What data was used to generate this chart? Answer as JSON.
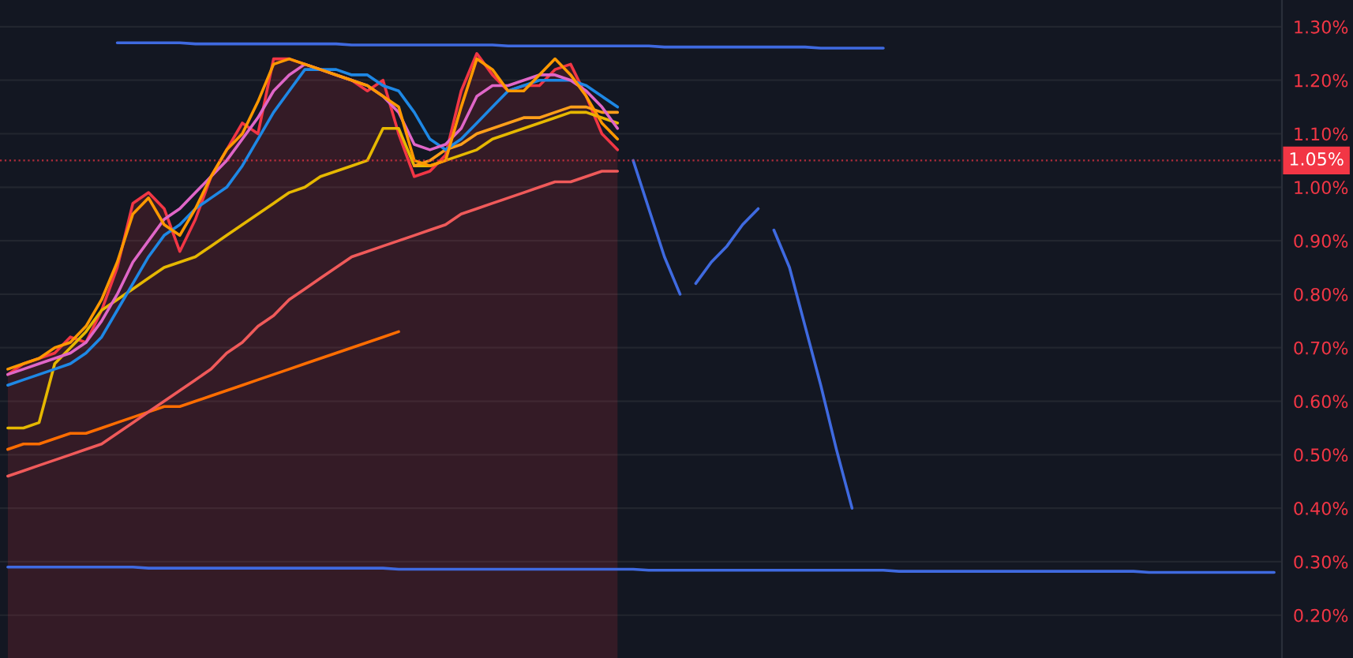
{
  "chart_data": {
    "type": "line",
    "categories": [
      null,
      null,
      null,
      null,
      null,
      null,
      null,
      null,
      null,
      null,
      null,
      null,
      null,
      null,
      null,
      null,
      null,
      null,
      null,
      null,
      null,
      null,
      null,
      null,
      null,
      null,
      null,
      null,
      null,
      null,
      null,
      null,
      null,
      null,
      null,
      null,
      null,
      null,
      null,
      null,
      null,
      null,
      null,
      null,
      null,
      null,
      null,
      null,
      null,
      null,
      null,
      null,
      null,
      null,
      null,
      null,
      null,
      null,
      null,
      null,
      null,
      null,
      null,
      null,
      null,
      null,
      null,
      null,
      null,
      null,
      null,
      null,
      null,
      null,
      null,
      null,
      null,
      null,
      null,
      null,
      null,
      null
    ],
    "ylim": [
      0.12,
      1.35
    ],
    "yticks": [
      {
        "value": 0.2,
        "label": "0.20%"
      },
      {
        "value": 0.3,
        "label": "0.30%"
      },
      {
        "value": 0.4,
        "label": "0.40%"
      },
      {
        "value": 0.5,
        "label": "0.50%"
      },
      {
        "value": 0.6,
        "label": "0.60%"
      },
      {
        "value": 0.7,
        "label": "0.70%"
      },
      {
        "value": 0.8,
        "label": "0.80%"
      },
      {
        "value": 0.9,
        "label": "0.90%"
      },
      {
        "value": 1.0,
        "label": "1.00%"
      },
      {
        "value": 1.1,
        "label": "1.10%"
      },
      {
        "value": 1.2,
        "label": "1.20%"
      },
      {
        "value": 1.3,
        "label": "1.30%"
      }
    ],
    "tick_labels": "y",
    "grid": "y",
    "ref_lines": [
      {
        "axis": "y",
        "value": 1.05,
        "label": "1.05%",
        "color": "#f23645",
        "line_style": "dotted"
      }
    ],
    "series": [
      {
        "type": "area",
        "color": "#f23645",
        "values": [
          0.65,
          0.67,
          0.68,
          0.69,
          0.72,
          0.71,
          0.77,
          0.85,
          0.97,
          0.99,
          0.96,
          0.88,
          0.94,
          1.02,
          1.07,
          1.12,
          1.1,
          1.24,
          1.24,
          1.23,
          1.22,
          1.21,
          1.2,
          1.18,
          1.2,
          1.1,
          1.02,
          1.03,
          1.06,
          1.18,
          1.25,
          1.21,
          1.18,
          1.19,
          1.19,
          1.22,
          1.23,
          1.17,
          1.1,
          1.07,
          null,
          null,
          null,
          null,
          null,
          null,
          null,
          null,
          null,
          null,
          null,
          null,
          null,
          null,
          null,
          null,
          null,
          null,
          null,
          null,
          null,
          null,
          null,
          null,
          null,
          null,
          null,
          null,
          null,
          null,
          null,
          null,
          null,
          null,
          null,
          null,
          null,
          null,
          null,
          null,
          null,
          null
        ]
      },
      {
        "color": "#ff6d00",
        "values": [
          0.51,
          0.52,
          0.52,
          0.53,
          0.54,
          0.54,
          0.55,
          0.56,
          0.57,
          0.58,
          0.59,
          0.59,
          0.6,
          0.61,
          0.62,
          0.63,
          0.64,
          0.65,
          0.66,
          0.67,
          0.68,
          0.69,
          0.7,
          0.71,
          0.72,
          0.73,
          null,
          null,
          null,
          null,
          null,
          null,
          null,
          null,
          null,
          null,
          null,
          null,
          null,
          null,
          null,
          null,
          null,
          null,
          null,
          null,
          null,
          null,
          null,
          null,
          null,
          null,
          null,
          null,
          null,
          null,
          null,
          null,
          null,
          null,
          null,
          null,
          null,
          null,
          null,
          null,
          null,
          null,
          null,
          null,
          null,
          null,
          null,
          null,
          null,
          null,
          null,
          null,
          null,
          null,
          null,
          null
        ]
      },
      {
        "color": "#f05a5a",
        "values": [
          0.46,
          0.47,
          0.48,
          0.49,
          0.5,
          0.51,
          0.52,
          0.54,
          0.56,
          0.58,
          0.6,
          0.62,
          0.64,
          0.66,
          0.69,
          0.71,
          0.74,
          0.76,
          0.79,
          0.81,
          0.83,
          0.85,
          0.87,
          0.88,
          0.89,
          0.9,
          0.91,
          0.92,
          0.93,
          0.95,
          0.96,
          0.97,
          0.98,
          0.99,
          1.0,
          1.01,
          1.01,
          1.02,
          1.03,
          1.03,
          null,
          null,
          null,
          null,
          null,
          null,
          null,
          null,
          null,
          null,
          null,
          null,
          null,
          null,
          null,
          null,
          null,
          null,
          null,
          null,
          null,
          null,
          null,
          null,
          null,
          null,
          null,
          null,
          null,
          null,
          null,
          null,
          null,
          null,
          null,
          null,
          null,
          null,
          null,
          null,
          null,
          null
        ]
      },
      {
        "color": "#e6b800",
        "values": [
          0.55,
          0.55,
          0.56,
          0.67,
          0.7,
          0.73,
          0.77,
          0.79,
          0.81,
          0.83,
          0.85,
          0.86,
          0.87,
          0.89,
          0.91,
          0.93,
          0.95,
          0.97,
          0.99,
          1.0,
          1.02,
          1.03,
          1.04,
          1.05,
          1.11,
          1.11,
          1.04,
          1.04,
          1.05,
          1.06,
          1.07,
          1.09,
          1.1,
          1.11,
          1.12,
          1.13,
          1.14,
          1.14,
          1.13,
          1.12,
          null,
          null,
          null,
          null,
          null,
          null,
          null,
          null,
          null,
          null,
          null,
          null,
          null,
          null,
          null,
          null,
          null,
          null,
          null,
          null,
          null,
          null,
          null,
          null,
          null,
          null,
          null,
          null,
          null,
          null,
          null,
          null,
          null,
          null,
          null,
          null,
          null,
          null,
          null,
          null,
          null,
          null
        ]
      },
      {
        "color": "#ff9f1a",
        "values": [
          null,
          null,
          null,
          null,
          null,
          null,
          null,
          null,
          null,
          null,
          null,
          null,
          null,
          null,
          null,
          null,
          null,
          null,
          null,
          null,
          null,
          null,
          null,
          null,
          null,
          null,
          1.04,
          1.05,
          1.07,
          1.08,
          1.1,
          1.11,
          1.12,
          1.13,
          1.13,
          1.14,
          1.15,
          1.15,
          1.14,
          1.14,
          null,
          null,
          null,
          null,
          null,
          null,
          null,
          null,
          null,
          null,
          null,
          null,
          null,
          null,
          null,
          null,
          null,
          null,
          null,
          null,
          null,
          null,
          null,
          null,
          null,
          null,
          null,
          null,
          null,
          null,
          null,
          null,
          null,
          null,
          null,
          null,
          null,
          null,
          null,
          null,
          null,
          null
        ]
      },
      {
        "color": "#1e88e5",
        "values": [
          0.63,
          0.64,
          0.65,
          0.66,
          0.67,
          0.69,
          0.72,
          0.77,
          0.82,
          0.87,
          0.91,
          0.93,
          0.96,
          0.98,
          1.0,
          1.04,
          1.09,
          1.14,
          1.18,
          1.22,
          1.22,
          1.22,
          1.21,
          1.21,
          1.19,
          1.18,
          1.14,
          1.09,
          1.07,
          1.09,
          1.12,
          1.15,
          1.18,
          1.19,
          1.2,
          1.2,
          1.2,
          1.19,
          1.17,
          1.15,
          null,
          null,
          null,
          null,
          null,
          null,
          null,
          null,
          null,
          null,
          null,
          null,
          null,
          null,
          null,
          null,
          null,
          null,
          null,
          null,
          null,
          null,
          null,
          null,
          null,
          null,
          null,
          null,
          null,
          null,
          null,
          null,
          null,
          null,
          null,
          null,
          null,
          null,
          null,
          null,
          null,
          null
        ]
      },
      {
        "color": "#e066c8",
        "values": [
          0.65,
          0.66,
          0.67,
          0.68,
          0.69,
          0.71,
          0.75,
          0.8,
          0.86,
          0.9,
          0.94,
          0.96,
          0.99,
          1.02,
          1.05,
          1.09,
          1.13,
          1.18,
          1.21,
          1.23,
          1.22,
          1.21,
          1.2,
          1.19,
          1.17,
          1.14,
          1.08,
          1.07,
          1.08,
          1.11,
          1.17,
          1.19,
          1.19,
          1.2,
          1.21,
          1.21,
          1.2,
          1.18,
          1.15,
          1.11,
          null,
          null,
          null,
          null,
          null,
          null,
          null,
          null,
          null,
          null,
          null,
          null,
          null,
          null,
          null,
          null,
          null,
          null,
          null,
          null,
          null,
          null,
          null,
          null,
          null,
          null,
          null,
          null,
          null,
          null,
          null,
          null,
          null,
          null,
          null,
          null,
          null,
          null,
          null,
          null,
          null,
          null
        ]
      },
      {
        "color": "#ff9800",
        "values": [
          0.66,
          0.67,
          0.68,
          0.7,
          0.71,
          0.74,
          0.79,
          0.86,
          0.95,
          0.98,
          0.93,
          0.91,
          0.96,
          1.02,
          1.07,
          1.1,
          1.16,
          1.23,
          1.24,
          1.23,
          1.22,
          1.21,
          1.2,
          1.19,
          1.17,
          1.15,
          1.05,
          1.04,
          1.05,
          1.15,
          1.24,
          1.22,
          1.18,
          1.18,
          1.21,
          1.24,
          1.21,
          1.17,
          1.12,
          1.09,
          null,
          null,
          null,
          null,
          null,
          null,
          null,
          null,
          null,
          null,
          null,
          null,
          null,
          null,
          null,
          null,
          null,
          null,
          null,
          null,
          null,
          null,
          null,
          null,
          null,
          null,
          null,
          null,
          null,
          null,
          null,
          null,
          null,
          null,
          null,
          null,
          null,
          null,
          null,
          null,
          null,
          null
        ]
      },
      {
        "color": "#3f6ae0",
        "values": [
          null,
          null,
          null,
          null,
          null,
          null,
          null,
          1.27,
          1.27,
          1.27,
          1.27,
          1.27,
          1.268,
          1.268,
          1.268,
          1.268,
          1.268,
          1.268,
          1.268,
          1.268,
          1.268,
          1.268,
          1.266,
          1.266,
          1.266,
          1.266,
          1.266,
          1.266,
          1.266,
          1.266,
          1.266,
          1.266,
          1.264,
          1.264,
          1.264,
          1.264,
          1.264,
          1.264,
          1.264,
          1.264,
          1.264,
          1.264,
          1.262,
          1.262,
          1.262,
          1.262,
          1.262,
          1.262,
          1.262,
          1.262,
          1.262,
          1.262,
          1.26,
          1.26,
          1.26,
          1.26,
          1.26,
          null,
          null,
          null,
          null,
          null,
          null,
          null,
          null,
          null,
          null,
          null,
          null,
          null,
          null,
          null,
          null,
          null,
          null,
          null,
          null,
          null,
          null,
          null,
          null,
          null
        ]
      },
      {
        "color": "#3f6ae0",
        "values": [
          0.29,
          0.29,
          0.29,
          0.29,
          0.29,
          0.29,
          0.29,
          0.29,
          0.29,
          0.288,
          0.288,
          0.288,
          0.288,
          0.288,
          0.288,
          0.288,
          0.288,
          0.288,
          0.288,
          0.288,
          0.288,
          0.288,
          0.288,
          0.288,
          0.288,
          0.286,
          0.286,
          0.286,
          0.286,
          0.286,
          0.286,
          0.286,
          0.286,
          0.286,
          0.286,
          0.286,
          0.286,
          0.286,
          0.286,
          0.286,
          0.286,
          0.284,
          0.284,
          0.284,
          0.284,
          0.284,
          0.284,
          0.284,
          0.284,
          0.284,
          0.284,
          0.284,
          0.284,
          0.284,
          0.284,
          0.284,
          0.284,
          0.282,
          0.282,
          0.282,
          0.282,
          0.282,
          0.282,
          0.282,
          0.282,
          0.282,
          0.282,
          0.282,
          0.282,
          0.282,
          0.282,
          0.282,
          0.282,
          0.28,
          0.28,
          0.28,
          0.28,
          0.28,
          0.28,
          0.28,
          0.28,
          0.28
        ]
      },
      {
        "color": "#3f6ae0",
        "values": [
          null,
          null,
          null,
          null,
          null,
          null,
          null,
          null,
          null,
          null,
          null,
          null,
          null,
          null,
          null,
          null,
          null,
          null,
          null,
          null,
          null,
          null,
          null,
          null,
          null,
          null,
          null,
          null,
          null,
          null,
          null,
          null,
          null,
          null,
          null,
          null,
          null,
          null,
          null,
          null,
          1.05,
          0.96,
          0.87,
          0.8,
          null,
          null,
          null,
          null,
          null,
          null,
          null,
          null,
          null,
          null,
          null,
          null,
          null,
          null,
          null,
          null,
          null,
          null,
          null,
          null,
          null,
          null,
          null,
          null,
          null,
          null,
          null,
          null,
          null,
          null,
          null,
          null,
          null,
          null,
          null,
          null,
          null,
          null
        ]
      },
      {
        "color": "#3f6ae0",
        "values": [
          null,
          null,
          null,
          null,
          null,
          null,
          null,
          null,
          null,
          null,
          null,
          null,
          null,
          null,
          null,
          null,
          null,
          null,
          null,
          null,
          null,
          null,
          null,
          null,
          null,
          null,
          null,
          null,
          null,
          null,
          null,
          null,
          null,
          null,
          null,
          null,
          null,
          null,
          null,
          null,
          null,
          null,
          null,
          null,
          0.82,
          0.86,
          0.89,
          0.93,
          0.96,
          null,
          null,
          null,
          null,
          null,
          null,
          null,
          null,
          null,
          null,
          null,
          null,
          null,
          null,
          null,
          null,
          null,
          null,
          null,
          null,
          null,
          null,
          null,
          null,
          null,
          null,
          null,
          null,
          null,
          null,
          null,
          null,
          null
        ]
      },
      {
        "color": "#3f6ae0",
        "values": [
          null,
          null,
          null,
          null,
          null,
          null,
          null,
          null,
          null,
          null,
          null,
          null,
          null,
          null,
          null,
          null,
          null,
          null,
          null,
          null,
          null,
          null,
          null,
          null,
          null,
          null,
          null,
          null,
          null,
          null,
          null,
          null,
          null,
          null,
          null,
          null,
          null,
          null,
          null,
          null,
          null,
          null,
          null,
          null,
          null,
          null,
          null,
          null,
          null,
          0.92,
          0.85,
          0.74,
          0.63,
          0.51,
          0.4,
          null,
          null,
          null,
          null,
          null,
          null,
          null,
          null,
          null,
          null,
          null,
          null,
          null,
          null,
          null,
          null,
          null,
          null,
          null,
          null,
          null,
          null,
          null,
          null,
          null,
          null,
          null
        ]
      }
    ]
  }
}
